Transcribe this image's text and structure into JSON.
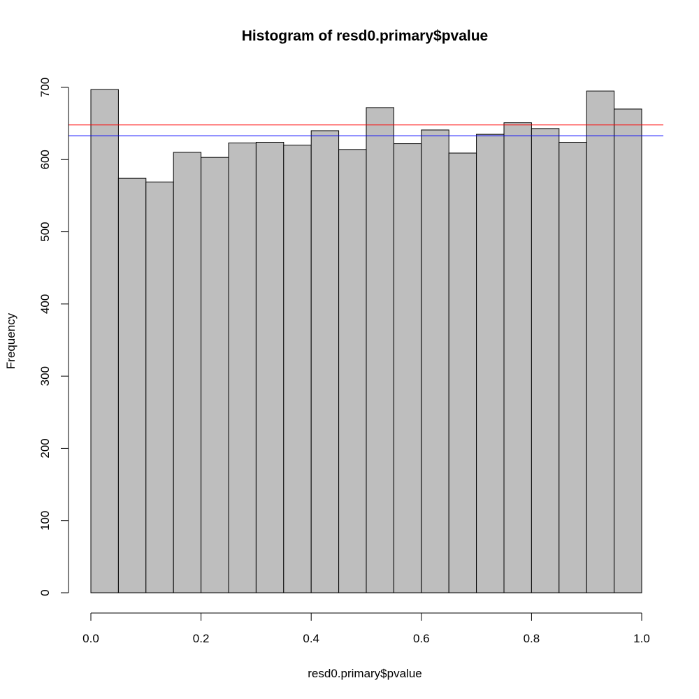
{
  "chart_data": {
    "type": "bar",
    "title": "Histogram of resd0.primary$pvalue",
    "xlabel": "resd0.primary$pvalue",
    "ylabel": "Frequency",
    "xlim": [
      0,
      1
    ],
    "ylim": [
      0,
      700
    ],
    "bin_edges": [
      0.0,
      0.05,
      0.1,
      0.15,
      0.2,
      0.25,
      0.3,
      0.35,
      0.4,
      0.45,
      0.5,
      0.55,
      0.6,
      0.65,
      0.7,
      0.75,
      0.8,
      0.85,
      0.9,
      0.95,
      1.0
    ],
    "values": [
      697,
      574,
      569,
      610,
      603,
      623,
      624,
      620,
      640,
      614,
      672,
      622,
      641,
      609,
      635,
      651,
      643,
      624,
      695,
      670
    ],
    "x_ticks": [
      "0.0",
      "0.2",
      "0.4",
      "0.6",
      "0.8",
      "1.0"
    ],
    "x_tick_values": [
      0.0,
      0.2,
      0.4,
      0.6,
      0.8,
      1.0
    ],
    "y_ticks": [
      "0",
      "100",
      "200",
      "300",
      "400",
      "500",
      "600",
      "700"
    ],
    "y_tick_values": [
      0,
      100,
      200,
      300,
      400,
      500,
      600,
      700
    ],
    "hlines": [
      {
        "value": 648,
        "color": "#ff0000"
      },
      {
        "value": 633,
        "color": "#0000ff"
      }
    ],
    "bar_fill": "#bebebe",
    "grid": false
  }
}
